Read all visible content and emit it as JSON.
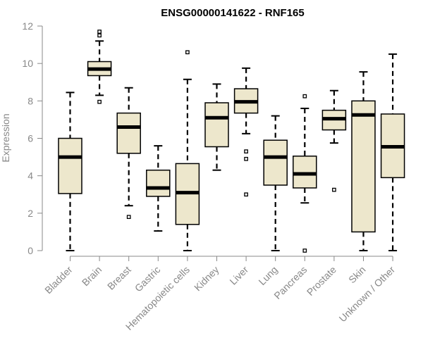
{
  "chart_data": {
    "type": "boxplot",
    "title": "ENSG00000141622 - RNF165",
    "ylabel": "Expression",
    "xlabel": "",
    "ylim": [
      0,
      12
    ],
    "yticks": [
      0,
      2,
      4,
      6,
      8,
      10,
      12
    ],
    "colors": {
      "box_fill": "#ede7cc",
      "stroke": "#000000",
      "axis_text": "#888888"
    },
    "categories": [
      "Bladder",
      "Brain",
      "Breast",
      "Gastric",
      "Hematopoietic cells",
      "Kidney",
      "Liver",
      "Lung",
      "Pancreas",
      "Prostate",
      "Skin",
      "Unknown / Other"
    ],
    "series": [
      {
        "name": "Bladder",
        "whisker_low": 0.0,
        "q1": 3.05,
        "median": 5.0,
        "q3": 6.0,
        "whisker_high": 8.45,
        "outliers": []
      },
      {
        "name": "Brain",
        "whisker_low": 8.3,
        "q1": 9.35,
        "median": 9.7,
        "q3": 10.1,
        "whisker_high": 11.2,
        "outliers": [
          7.95,
          11.5,
          11.7
        ]
      },
      {
        "name": "Breast",
        "whisker_low": 2.4,
        "q1": 5.2,
        "median": 6.6,
        "q3": 7.35,
        "whisker_high": 8.7,
        "outliers": [
          1.8
        ]
      },
      {
        "name": "Gastric",
        "whisker_low": 1.05,
        "q1": 2.9,
        "median": 3.35,
        "q3": 4.3,
        "whisker_high": 5.6,
        "outliers": []
      },
      {
        "name": "Hematopoietic cells",
        "whisker_low": 0.0,
        "q1": 1.4,
        "median": 3.1,
        "q3": 4.65,
        "whisker_high": 9.15,
        "outliers": [
          10.6
        ]
      },
      {
        "name": "Kidney",
        "whisker_low": 4.3,
        "q1": 5.55,
        "median": 7.1,
        "q3": 7.9,
        "whisker_high": 8.9,
        "outliers": []
      },
      {
        "name": "Liver",
        "whisker_low": 6.25,
        "q1": 7.35,
        "median": 7.95,
        "q3": 8.65,
        "whisker_high": 9.75,
        "outliers": [
          3.0,
          4.9,
          5.3
        ]
      },
      {
        "name": "Lung",
        "whisker_low": 0.0,
        "q1": 3.5,
        "median": 5.0,
        "q3": 5.9,
        "whisker_high": 7.2,
        "outliers": []
      },
      {
        "name": "Pancreas",
        "whisker_low": 2.55,
        "q1": 3.35,
        "median": 4.1,
        "q3": 5.05,
        "whisker_high": 7.6,
        "outliers": [
          0.0,
          8.25
        ]
      },
      {
        "name": "Prostate",
        "whisker_low": 5.75,
        "q1": 6.45,
        "median": 7.05,
        "q3": 7.5,
        "whisker_high": 8.55,
        "outliers": [
          3.25
        ]
      },
      {
        "name": "Skin",
        "whisker_low": 0.0,
        "q1": 1.0,
        "median": 7.25,
        "q3": 8.0,
        "whisker_high": 9.55,
        "outliers": []
      },
      {
        "name": "Unknown / Other",
        "whisker_low": 0.0,
        "q1": 3.9,
        "median": 5.55,
        "q3": 7.3,
        "whisker_high": 10.5,
        "outliers": []
      }
    ]
  }
}
